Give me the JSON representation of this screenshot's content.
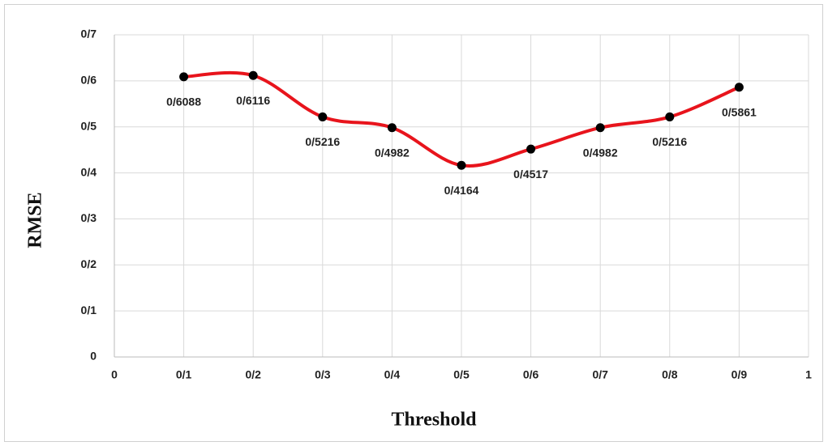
{
  "chart_data": {
    "type": "line",
    "xlabel": "Threshold",
    "ylabel": "RMSE",
    "x": [
      0.1,
      0.2,
      0.3,
      0.4,
      0.5,
      0.6,
      0.7,
      0.8,
      0.9
    ],
    "series": [
      {
        "name": "RMSE",
        "color": "#e8141c",
        "marker_color": "#000000",
        "values": [
          0.6088,
          0.6116,
          0.5216,
          0.4982,
          0.4164,
          0.4517,
          0.4982,
          0.5216,
          0.5861
        ],
        "value_labels": [
          "0/6088",
          "0/6116",
          "0/5216",
          "0/4982",
          "0/4164",
          "0/4517",
          "0/4982",
          "0/5216",
          "0/5861"
        ]
      }
    ],
    "smooth": true,
    "xlim": [
      0,
      1
    ],
    "ylim": [
      0,
      0.7
    ],
    "xticks": [
      0,
      {
        "value": 0.1,
        "label": "0/1"
      },
      {
        "value": 0.2,
        "label": "0/2"
      },
      {
        "value": 0.3,
        "label": "0/3"
      },
      {
        "value": 0.4,
        "label": "0/4"
      },
      {
        "value": 0.5,
        "label": "0/5"
      },
      {
        "value": 0.6,
        "label": "0/6"
      },
      {
        "value": 0.7,
        "label": "0/7"
      },
      {
        "value": 0.8,
        "label": "0/8"
      },
      {
        "value": 0.9,
        "label": "0/9"
      },
      1
    ],
    "yticks": [
      0,
      {
        "value": 0.1,
        "label": "0/1"
      },
      {
        "value": 0.2,
        "label": "0/2"
      },
      {
        "value": 0.3,
        "label": "0/3"
      },
      {
        "value": 0.4,
        "label": "0/4"
      },
      {
        "value": 0.5,
        "label": "0/5"
      },
      {
        "value": 0.6,
        "label": "0/6"
      },
      {
        "value": 0.7,
        "label": "0/7"
      }
    ],
    "grid": true
  }
}
